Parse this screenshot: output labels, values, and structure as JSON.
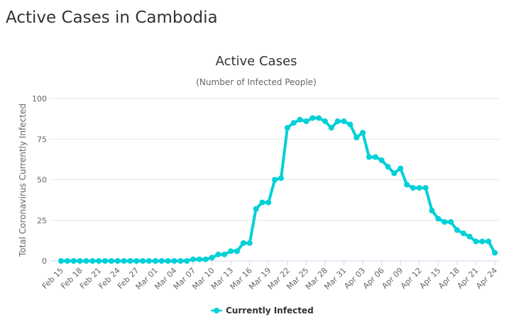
{
  "page": {
    "heading": "Active Cases in Cambodia"
  },
  "chart_data": {
    "type": "line",
    "title": "Active Cases",
    "subtitle": "(Number of Infected People)",
    "ylabel": "Total Coronavirus Currently Infected",
    "xlabel": "",
    "ylim": [
      0,
      100
    ],
    "yticks": [
      0,
      25,
      50,
      75,
      100
    ],
    "grid": true,
    "legend_position": "bottom-center",
    "color": "#00d0d8",
    "categories": [
      "Feb 15",
      "Feb 16",
      "Feb 17",
      "Feb 18",
      "Feb 19",
      "Feb 20",
      "Feb 21",
      "Feb 22",
      "Feb 23",
      "Feb 24",
      "Feb 25",
      "Feb 26",
      "Feb 27",
      "Feb 28",
      "Feb 29",
      "Mar 01",
      "Mar 02",
      "Mar 03",
      "Mar 04",
      "Mar 05",
      "Mar 06",
      "Mar 07",
      "Mar 08",
      "Mar 09",
      "Mar 10",
      "Mar 11",
      "Mar 12",
      "Mar 13",
      "Mar 14",
      "Mar 15",
      "Mar 16",
      "Mar 17",
      "Mar 18",
      "Mar 19",
      "Mar 20",
      "Mar 21",
      "Mar 22",
      "Mar 23",
      "Mar 24",
      "Mar 25",
      "Mar 26",
      "Mar 27",
      "Mar 28",
      "Mar 29",
      "Mar 30",
      "Mar 31",
      "Apr 01",
      "Apr 02",
      "Apr 03",
      "Apr 04",
      "Apr 05",
      "Apr 06",
      "Apr 07",
      "Apr 08",
      "Apr 09",
      "Apr 10",
      "Apr 11",
      "Apr 12",
      "Apr 13",
      "Apr 14",
      "Apr 15",
      "Apr 16",
      "Apr 17",
      "Apr 18",
      "Apr 19",
      "Apr 20",
      "Apr 21",
      "Apr 22",
      "Apr 23",
      "Apr 24"
    ],
    "x_tick_labels": [
      "Feb 15",
      "Feb 18",
      "Feb 21",
      "Feb 24",
      "Feb 27",
      "Mar 01",
      "Mar 04",
      "Mar 07",
      "Mar 10",
      "Mar 13",
      "Mar 16",
      "Mar 19",
      "Mar 22",
      "Mar 25",
      "Mar 28",
      "Mar 31",
      "Apr 03",
      "Apr 06",
      "Apr 09",
      "Apr 12",
      "Apr 15",
      "Apr 18",
      "Apr 21",
      "Apr 24"
    ],
    "series": [
      {
        "name": "Currently Infected",
        "values": [
          0,
          0,
          0,
          0,
          0,
          0,
          0,
          0,
          0,
          0,
          0,
          0,
          0,
          0,
          0,
          0,
          0,
          0,
          0,
          0,
          0,
          1,
          1,
          1,
          2,
          4,
          4,
          6,
          6,
          11,
          11,
          32,
          36,
          36,
          50,
          51,
          82,
          85,
          87,
          86,
          88,
          88,
          86,
          82,
          86,
          86,
          84,
          76,
          79,
          64,
          64,
          62,
          58,
          54,
          57,
          47,
          45,
          45,
          45,
          31,
          26,
          24,
          24,
          19,
          17,
          15,
          12,
          12,
          12,
          5
        ]
      }
    ]
  }
}
